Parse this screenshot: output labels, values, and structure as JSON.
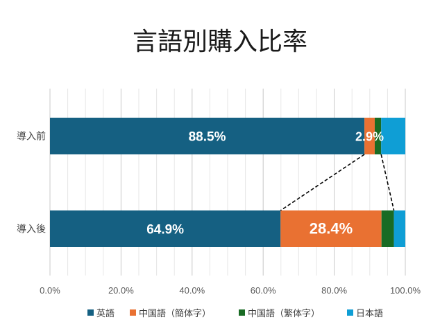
{
  "chart_data": {
    "type": "bar",
    "orientation": "horizontal",
    "stacked": true,
    "title": "言語別購入比率",
    "categories": [
      "導入前",
      "導入後"
    ],
    "series": [
      {
        "name": "英語",
        "color": "#156082",
        "values": [
          88.5,
          64.9
        ],
        "labels": [
          "88.5%",
          "64.9%"
        ]
      },
      {
        "name": "中国語（簡体字）",
        "color": "#E97132",
        "values": [
          2.9,
          28.4
        ],
        "labels": [
          "2.9%",
          "28.4%"
        ]
      },
      {
        "name": "中国語（繁体字）",
        "color": "#196B24",
        "values": [
          1.8,
          3.5
        ],
        "labels": [
          "",
          ""
        ]
      },
      {
        "name": "日本語",
        "color": "#0F9ED5",
        "values": [
          6.8,
          3.2
        ],
        "labels": [
          "",
          ""
        ]
      }
    ],
    "xlim": [
      0,
      100
    ],
    "xticks": [
      "0.0%",
      "20.0%",
      "40.0%",
      "60.0%",
      "80.0%",
      "100.0%"
    ],
    "grid": true,
    "legend_position": "bottom",
    "xlabel": "",
    "ylabel": ""
  }
}
